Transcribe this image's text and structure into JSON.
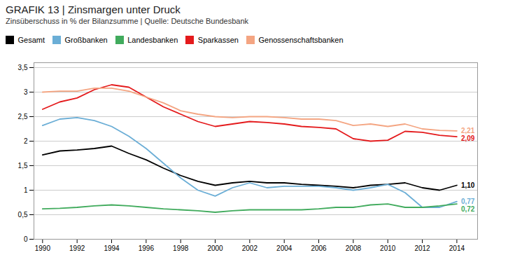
{
  "chart_data": {
    "type": "line",
    "title": "GRAFIK 13 | Zinsmargen unter Druck",
    "subtitle": "Zinsüberschuss in % der Bilanzsumme | Quelle: Deutsche Bundesbank",
    "x": [
      1990,
      1991,
      1992,
      1993,
      1994,
      1995,
      1996,
      1997,
      1998,
      1999,
      2000,
      2001,
      2002,
      2003,
      2004,
      2005,
      2006,
      2007,
      2008,
      2009,
      2010,
      2011,
      2012,
      2013,
      2014
    ],
    "series": [
      {
        "name": "Gesamt",
        "color": "#000000",
        "values": [
          1.72,
          1.8,
          1.82,
          1.85,
          1.9,
          1.75,
          1.62,
          1.45,
          1.3,
          1.18,
          1.1,
          1.15,
          1.18,
          1.15,
          1.15,
          1.12,
          1.1,
          1.08,
          1.05,
          1.1,
          1.12,
          1.15,
          1.05,
          1.0,
          1.1
        ]
      },
      {
        "name": "Großbanken",
        "color": "#6baed6",
        "values": [
          2.32,
          2.45,
          2.48,
          2.42,
          2.3,
          2.1,
          1.85,
          1.55,
          1.25,
          1.0,
          0.88,
          1.05,
          1.15,
          1.05,
          1.08,
          1.08,
          1.08,
          1.05,
          1.0,
          1.05,
          1.12,
          0.95,
          0.65,
          0.65,
          0.77
        ]
      },
      {
        "name": "Landesbanken",
        "color": "#41ab5d",
        "values": [
          0.62,
          0.63,
          0.65,
          0.68,
          0.7,
          0.68,
          0.65,
          0.62,
          0.6,
          0.58,
          0.55,
          0.58,
          0.6,
          0.6,
          0.6,
          0.6,
          0.62,
          0.65,
          0.65,
          0.7,
          0.72,
          0.65,
          0.65,
          0.68,
          0.72
        ]
      },
      {
        "name": "Sparkassen",
        "color": "#e41a1c",
        "values": [
          2.65,
          2.8,
          2.88,
          3.05,
          3.15,
          3.1,
          2.9,
          2.7,
          2.55,
          2.4,
          2.3,
          2.35,
          2.4,
          2.38,
          2.35,
          2.3,
          2.28,
          2.25,
          2.05,
          2.0,
          2.02,
          2.2,
          2.18,
          2.12,
          2.09
        ]
      },
      {
        "name": "Genossenschaftsbanken",
        "color": "#f4a582",
        "values": [
          3.0,
          3.02,
          3.02,
          3.08,
          3.08,
          3.02,
          2.9,
          2.78,
          2.62,
          2.55,
          2.5,
          2.48,
          2.5,
          2.5,
          2.48,
          2.45,
          2.45,
          2.42,
          2.32,
          2.35,
          2.3,
          2.35,
          2.25,
          2.22,
          2.21
        ]
      }
    ],
    "xlim": [
      1989.5,
      2015.2
    ],
    "xticks": [
      1990,
      1992,
      1994,
      1996,
      1998,
      2000,
      2002,
      2004,
      2006,
      2008,
      2010,
      2012,
      2014
    ],
    "ylim": [
      0,
      3.6
    ],
    "yticks": [
      0,
      {
        "value": 0.5,
        "label": "0,5"
      },
      1,
      {
        "value": 1.5,
        "label": "1,5"
      },
      2,
      {
        "value": 2.5,
        "label": "2,5"
      },
      3,
      {
        "value": 3.5,
        "label": "3,5"
      }
    ],
    "grid": "y",
    "legend": "top",
    "annotations": [
      {
        "text": "2,21",
        "x": 2014,
        "y": 2.21,
        "color": "#f4a582"
      },
      {
        "text": "2,09",
        "x": 2014,
        "y": 2.09,
        "color": "#e41a1c"
      },
      {
        "text": "1,10",
        "x": 2014,
        "y": 1.1,
        "color": "#000000"
      },
      {
        "text": "0,77",
        "x": 2014,
        "y": 0.77,
        "color": "#6baed6"
      },
      {
        "text": "0,72",
        "x": 2014,
        "y": 0.72,
        "color": "#41ab5d"
      }
    ]
  }
}
